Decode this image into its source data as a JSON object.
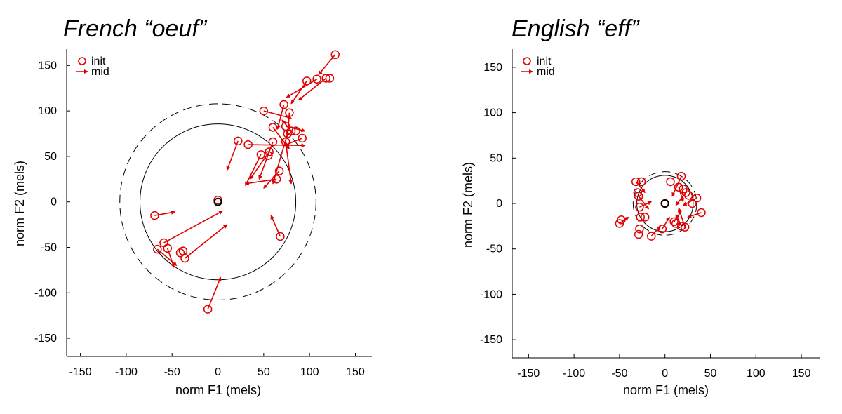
{
  "chart_data": [
    {
      "type": "scatter",
      "title": "French “oeuf”",
      "xlabel": "norm F1 (mels)",
      "ylabel": "norm F2 (mels)",
      "xlim": [
        -165,
        168
      ],
      "ylim": [
        -170,
        168
      ],
      "xticks": [
        -150,
        -100,
        -50,
        0,
        50,
        100,
        150
      ],
      "yticks": [
        -150,
        -100,
        -50,
        0,
        50,
        100,
        150
      ],
      "grid": false,
      "legend_position": "top-left",
      "legend": [
        "init",
        "mid"
      ],
      "center_point": [
        0,
        0
      ],
      "solid_circle_radius": 85,
      "dashed_circle_radius": 107,
      "series": [
        {
          "name": "init",
          "marker": "open-circle",
          "color": "#e00000",
          "points": [
            [
              128,
              162
            ],
            [
              118,
              136
            ],
            [
              122,
              136
            ],
            [
              108,
              135
            ],
            [
              97,
              133
            ],
            [
              72,
              107
            ],
            [
              78,
              98
            ],
            [
              50,
              100
            ],
            [
              74,
              83
            ],
            [
              60,
              82
            ],
            [
              80,
              78
            ],
            [
              85,
              78
            ],
            [
              92,
              70
            ],
            [
              76,
              75
            ],
            [
              74,
              66
            ],
            [
              60,
              66
            ],
            [
              22,
              67
            ],
            [
              33,
              63
            ],
            [
              47,
              52
            ],
            [
              56,
              55
            ],
            [
              55,
              51
            ],
            [
              67,
              34
            ],
            [
              64,
              25
            ],
            [
              -69,
              -15
            ],
            [
              -66,
              -52
            ],
            [
              -59,
              -45
            ],
            [
              -55,
              -51
            ],
            [
              -38,
              -54
            ],
            [
              -36,
              -62
            ],
            [
              -41,
              -56
            ],
            [
              68,
              -38
            ],
            [
              -11,
              -118
            ],
            [
              0,
              2
            ]
          ]
        },
        {
          "name": "mid",
          "marker": "arrow",
          "color": "#e00000",
          "segments": [
            [
              [
                128,
                162
              ],
              [
                110,
                140
              ]
            ],
            [
              [
                118,
                136
              ],
              [
                88,
                112
              ]
            ],
            [
              [
                108,
                135
              ],
              [
                75,
                115
              ]
            ],
            [
              [
                97,
                133
              ],
              [
                80,
                108
              ]
            ],
            [
              [
                72,
                107
              ],
              [
                65,
                80
              ]
            ],
            [
              [
                78,
                98
              ],
              [
                76,
                72
              ]
            ],
            [
              [
                50,
                100
              ],
              [
                80,
                92
              ]
            ],
            [
              [
                74,
                83
              ],
              [
                95,
                78
              ]
            ],
            [
              [
                60,
                82
              ],
              [
                78,
                58
              ]
            ],
            [
              [
                80,
                78
              ],
              [
                70,
                90
              ]
            ],
            [
              [
                92,
                70
              ],
              [
                72,
                62
              ]
            ],
            [
              [
                76,
                75
              ],
              [
                60,
                20
              ]
            ],
            [
              [
                74,
                66
              ],
              [
                80,
                20
              ]
            ],
            [
              [
                60,
                66
              ],
              [
                45,
                25
              ]
            ],
            [
              [
                22,
                67
              ],
              [
                10,
                35
              ]
            ],
            [
              [
                33,
                63
              ],
              [
                95,
                62
              ]
            ],
            [
              [
                47,
                52
              ],
              [
                30,
                18
              ]
            ],
            [
              [
                56,
                55
              ],
              [
                35,
                25
              ]
            ],
            [
              [
                67,
                34
              ],
              [
                50,
                15
              ]
            ],
            [
              [
                64,
                25
              ],
              [
                30,
                20
              ]
            ],
            [
              [
                -69,
                -15
              ],
              [
                -47,
                -11
              ]
            ],
            [
              [
                -66,
                -52
              ],
              [
                -45,
                -70
              ]
            ],
            [
              [
                -59,
                -45
              ],
              [
                5,
                -10
              ]
            ],
            [
              [
                -55,
                -51
              ],
              [
                -48,
                -72
              ]
            ],
            [
              [
                -36,
                -62
              ],
              [
                10,
                -25
              ]
            ],
            [
              [
                68,
                -38
              ],
              [
                58,
                -15
              ]
            ],
            [
              [
                -11,
                -118
              ],
              [
                3,
                -83
              ]
            ]
          ]
        }
      ]
    },
    {
      "type": "scatter",
      "title": "English “eff”",
      "xlabel": "norm F1 (mels)",
      "ylabel": "norm F2 (mels)",
      "xlim": [
        -168,
        170
      ],
      "ylim": [
        -170,
        170
      ],
      "xticks": [
        -150,
        -100,
        -50,
        0,
        50,
        100,
        150
      ],
      "yticks": [
        -150,
        -100,
        -50,
        0,
        50,
        100,
        150
      ],
      "grid": false,
      "legend_position": "top-left",
      "legend": [
        "init",
        "mid"
      ],
      "center_point": [
        0,
        0
      ],
      "solid_circle_radius": 31,
      "dashed_circle_radius": 35,
      "series": [
        {
          "name": "init",
          "marker": "open-circle",
          "color": "#e00000",
          "points": [
            [
              -32,
              24
            ],
            [
              -26,
              24
            ],
            [
              -30,
              12
            ],
            [
              -29,
              8
            ],
            [
              -28,
              -4
            ],
            [
              -27,
              -15
            ],
            [
              -22,
              -15
            ],
            [
              -50,
              -22
            ],
            [
              -48,
              -18
            ],
            [
              -28,
              -28
            ],
            [
              -29,
              -34
            ],
            [
              -15,
              -36
            ],
            [
              6,
              24
            ],
            [
              18,
              30
            ],
            [
              15,
              18
            ],
            [
              20,
              16
            ],
            [
              23,
              12
            ],
            [
              26,
              9
            ],
            [
              30,
              0
            ],
            [
              35,
              6
            ],
            [
              40,
              -10
            ],
            [
              18,
              -25
            ],
            [
              22,
              -26
            ],
            [
              12,
              -22
            ],
            [
              10,
              -20
            ],
            [
              -3,
              -28
            ],
            [
              0,
              0
            ]
          ]
        },
        {
          "name": "mid",
          "marker": "arrow",
          "color": "#e00000",
          "segments": [
            [
              [
                -32,
                24
              ],
              [
                -22,
                12
              ]
            ],
            [
              [
                -29,
                8
              ],
              [
                -18,
                -6
              ]
            ],
            [
              [
                -28,
                -4
              ],
              [
                -15,
                2
              ]
            ],
            [
              [
                -50,
                -22
              ],
              [
                -40,
                -15
              ]
            ],
            [
              [
                -15,
                -36
              ],
              [
                -5,
                -25
              ]
            ],
            [
              [
                18,
                30
              ],
              [
                8,
                8
              ]
            ],
            [
              [
                15,
                18
              ],
              [
                20,
                2
              ]
            ],
            [
              [
                23,
                12
              ],
              [
                12,
                -2
              ]
            ],
            [
              [
                35,
                6
              ],
              [
                20,
                -2
              ]
            ],
            [
              [
                40,
                -10
              ],
              [
                25,
                -15
              ]
            ],
            [
              [
                18,
                -25
              ],
              [
                12,
                -12
              ]
            ],
            [
              [
                22,
                -26
              ],
              [
                15,
                -5
              ]
            ],
            [
              [
                -3,
                -28
              ],
              [
                5,
                -15
              ]
            ],
            [
              [
                10,
                -20
              ],
              [
                18,
                -8
              ]
            ]
          ]
        }
      ]
    }
  ]
}
